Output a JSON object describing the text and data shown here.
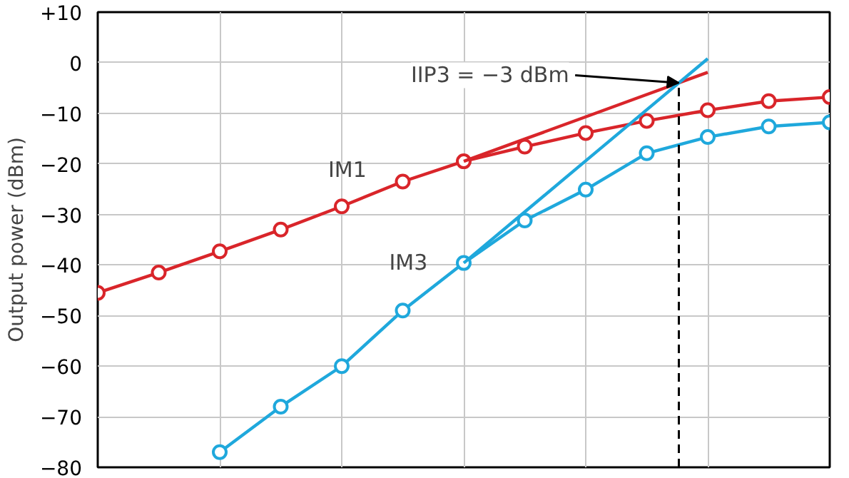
{
  "chart_data": {
    "type": "line",
    "ylabel": "Output power (dBm)",
    "categories": [
      null,
      null,
      null,
      null,
      null,
      null,
      null,
      null,
      null,
      null,
      null,
      null,
      null
    ],
    "ylim": [
      -80,
      10
    ],
    "yticks": [
      {
        "value": 10,
        "label": "+10"
      },
      0,
      {
        "value": -10,
        "label": "−10"
      },
      {
        "value": -20,
        "label": "−20"
      },
      {
        "value": -30,
        "label": "−30"
      },
      {
        "value": -40,
        "label": "−40"
      },
      {
        "value": -50,
        "label": "−50"
      },
      {
        "value": -60,
        "label": "−60"
      },
      {
        "value": -70,
        "label": "−70"
      },
      {
        "value": -80,
        "label": "−80"
      }
    ],
    "grid": true,
    "legend": false,
    "tick_labels": "y",
    "marker": "circle",
    "line_style": "solid",
    "series": [
      {
        "name": "IM1",
        "color": "#d9252a",
        "values": [
          -45.5,
          -41.5,
          -37.3,
          -33,
          -28.4,
          -23.5,
          -19.5,
          -16.6,
          -13.9,
          -11.5,
          -9.4,
          -7.6,
          -6.8
        ]
      },
      {
        "name": "IM3",
        "color": "#1fa8dc",
        "values": [
          null,
          null,
          -77,
          -68,
          -60,
          -49,
          -39.6,
          -31.2,
          -25.1,
          -17.9,
          -14.7,
          -12.6,
          -11.8
        ]
      },
      {
        "type": "line",
        "marker": "none",
        "color": "#d9252a",
        "values": [
          null,
          null,
          null,
          null,
          null,
          null,
          -19.5,
          -15.1,
          -10.7,
          -6.3,
          -1.9,
          null,
          null
        ]
      },
      {
        "type": "line",
        "marker": "none",
        "color": "#1fa8dc",
        "values": [
          null,
          null,
          null,
          null,
          null,
          null,
          -39.6,
          -29.5,
          -19.4,
          -9.3,
          0.8,
          null,
          null
        ]
      }
    ],
    "annotations": [
      "IIP3 = −3 dBm"
    ]
  }
}
